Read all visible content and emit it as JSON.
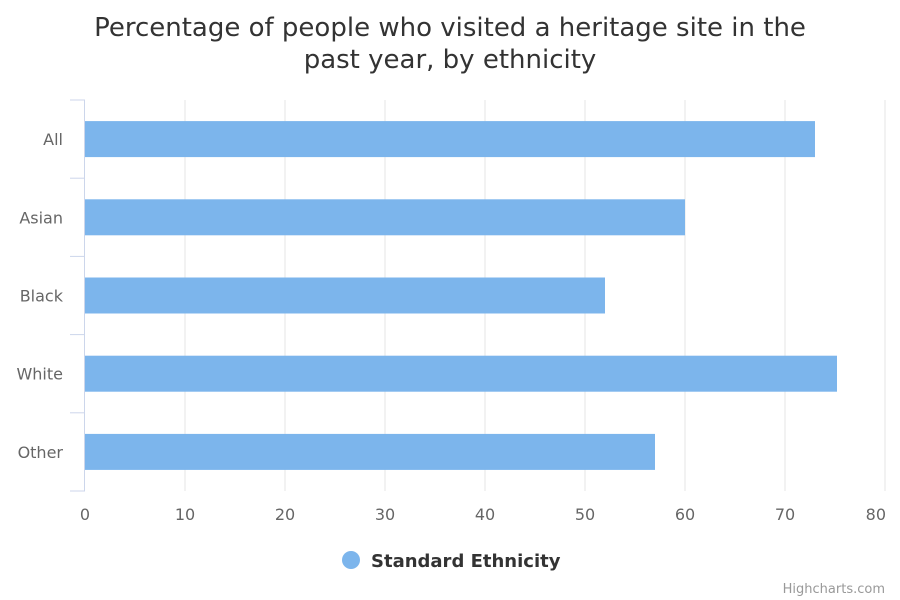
{
  "chart_data": {
    "type": "bar",
    "orientation": "horizontal",
    "title": "Percentage of people who visited a heritage site in the past year, by ethnicity",
    "title_lines": [
      "Percentage of people who visited a heritage site in the",
      "past year, by ethnicity"
    ],
    "categories": [
      "All",
      "Asian",
      "Black",
      "White",
      "Other"
    ],
    "series": [
      {
        "name": "Standard Ethnicity",
        "values": [
          73,
          60,
          52,
          75.2,
          57
        ],
        "color": "#7cb5ec"
      }
    ],
    "xlim": [
      0,
      80
    ],
    "ticks": [
      0,
      10,
      20,
      30,
      40,
      50,
      60,
      70,
      80
    ],
    "grid": true,
    "legend_position": "bottom-center",
    "credits": "Highcharts.com"
  }
}
